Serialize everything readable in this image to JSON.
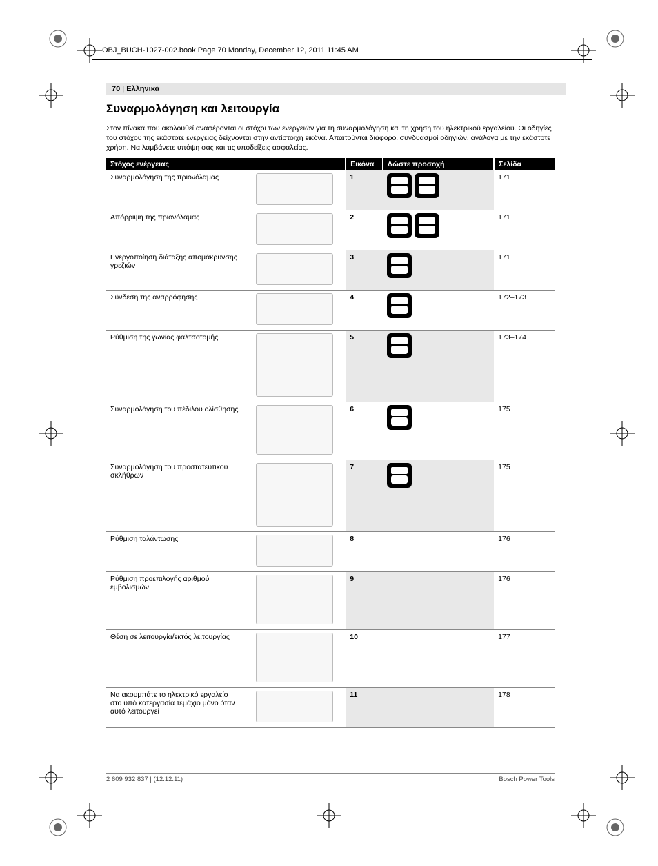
{
  "header": {
    "running_head": "OBJ_BUCH-1027-002.book  Page 70  Monday, December 12, 2011  11:45 AM"
  },
  "page_label": {
    "num": "70",
    "sep": " | ",
    "lang": "Ελληνικά"
  },
  "title": "Συναρμολόγηση και λειτουργία",
  "intro": "Στον πίνακα που ακολουθεί αναφέρονται οι στόχοι των ενεργειών για τη συναρμολόγηση και τη χρήση του ηλεκτρικού εργαλείου. Οι οδηγίες του στόχου της εκάστοτε ενέργειας δείχνονται στην αντίστοιχη εικόνα. Απαιτούνται διάφοροι συνδυασμοί οδηγιών, ανάλογα με την εκάστοτε χρήση. Να λαμβάνετε υπόψη σας και τις υποδείξεις ασφαλείας.",
  "table": {
    "headers": {
      "target": "Στόχος ενέργειας",
      "image": "Εικόνα",
      "attention": "Δώστε προσοχή",
      "page": "Σελίδα"
    },
    "rows": [
      {
        "target": "Συναρμολόγηση της πριονόλαμας",
        "image_num": "1",
        "attn_icons": 2,
        "page": "171",
        "h": ""
      },
      {
        "target": "Απόρριψη της πριονόλαμας",
        "image_num": "2",
        "attn_icons": 2,
        "page": "171",
        "h": ""
      },
      {
        "target": "Ενεργοποίηση διάταξης απομάκρυνσης γρεζιών",
        "image_num": "3",
        "attn_icons": 1,
        "page": "171",
        "h": ""
      },
      {
        "target": "Σύνδεση της αναρρόφησης",
        "image_num": "4",
        "attn_icons": 1,
        "page": "172–173",
        "h": ""
      },
      {
        "target": "Ρύθμιση της γωνίας φαλτσοτομής",
        "image_num": "5",
        "attn_icons": 1,
        "page": "173–174",
        "h": "tall"
      },
      {
        "target": "Συναρμολόγηση του πέδιλου ολίσθησης",
        "image_num": "6",
        "attn_icons": 1,
        "page": "175",
        "h": "med"
      },
      {
        "target": "Συναρμολόγηση του προστατευτικού σκλήθρων",
        "image_num": "7",
        "attn_icons": 1,
        "page": "175",
        "h": "tall"
      },
      {
        "target": "Ρύθμιση ταλάντωσης",
        "image_num": "8",
        "attn_icons": 0,
        "page": "176",
        "h": ""
      },
      {
        "target": "Ρύθμιση προεπιλογής αριθμού εμβολισμών",
        "image_num": "9",
        "attn_icons": 0,
        "page": "176",
        "h": "med"
      },
      {
        "target": "Θέση σε λειτουργία/εκτός λειτουργίας",
        "image_num": "10",
        "attn_icons": 0,
        "page": "177",
        "h": "med"
      },
      {
        "target": "Να ακουμπάτε το ηλεκτρικό εργαλείο στο υπό κατεργασία τεμάχιο μόνο όταν αυτό λειτουργεί",
        "image_num": "11",
        "attn_icons": 0,
        "page": "178",
        "h": ""
      }
    ]
  },
  "footer": {
    "left": "2 609 932 837 | (12.12.11)",
    "right": "Bosch Power Tools"
  },
  "colors": {
    "header_bg": "#000000",
    "header_fg": "#ffffff",
    "stripe_bg": "#e8e8e8",
    "page_bg": "#ffffff"
  }
}
